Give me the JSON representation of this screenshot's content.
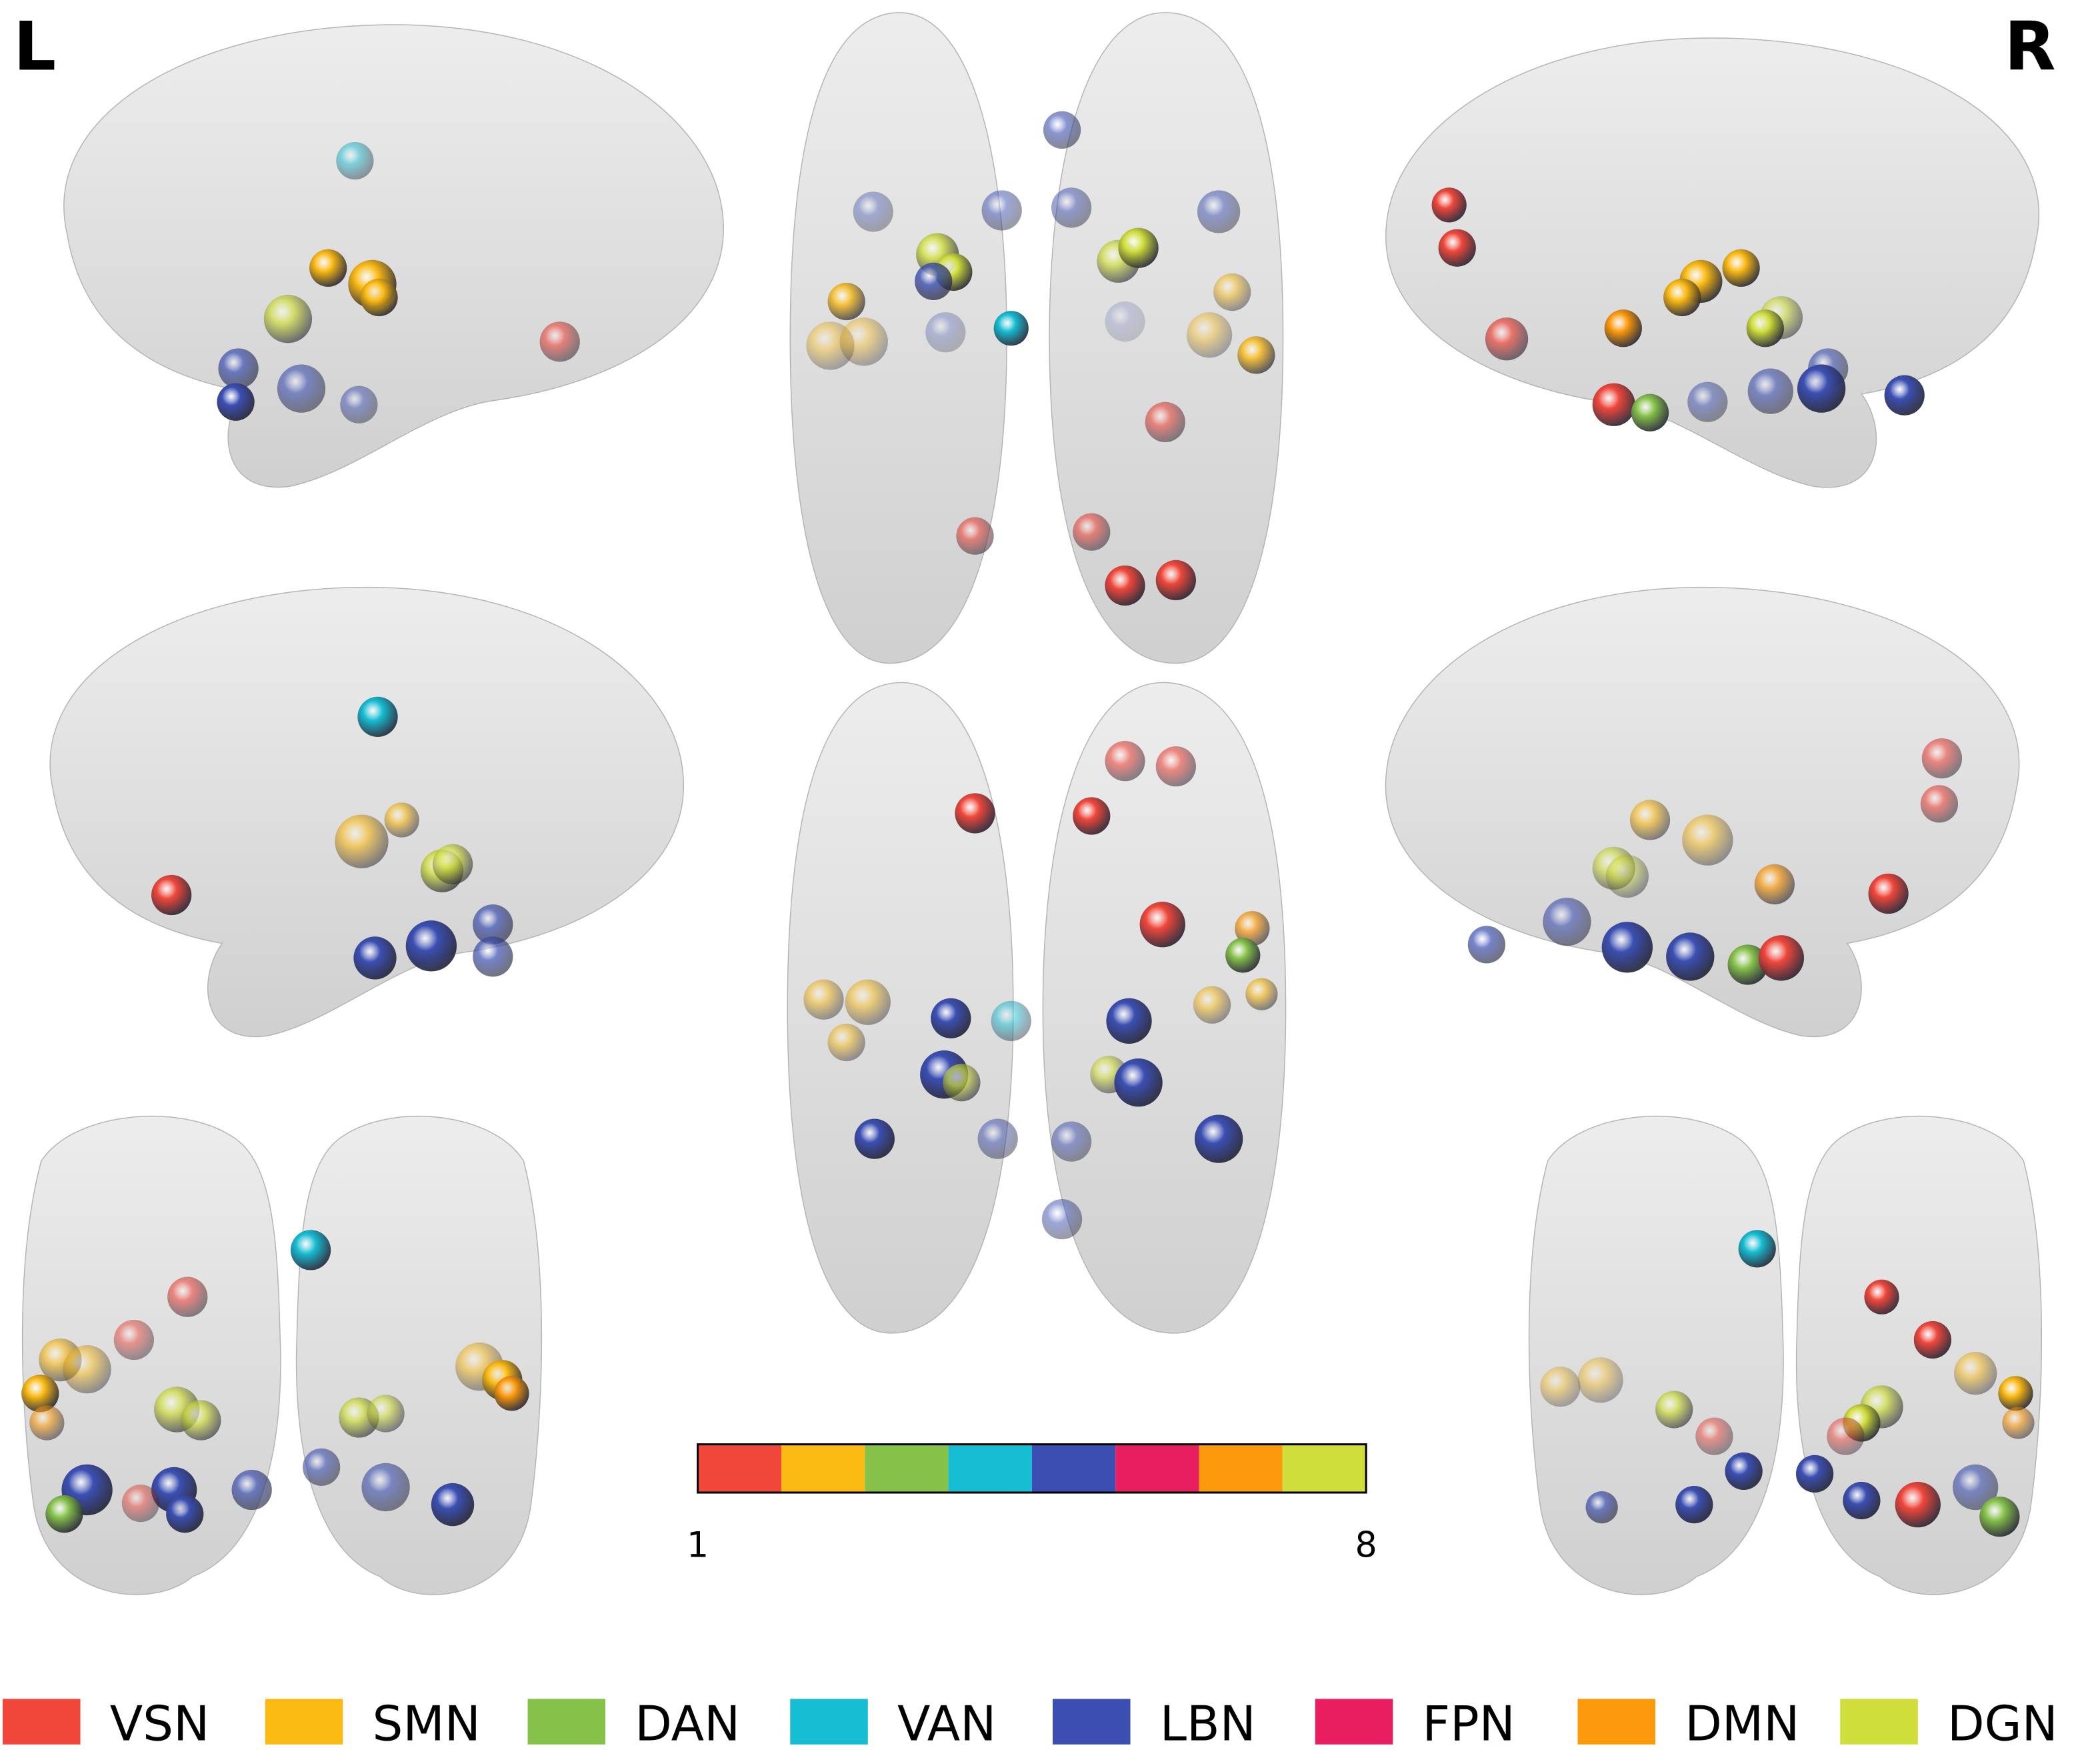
{
  "view_labels": {
    "left": "L",
    "right": "R"
  },
  "colorbar": {
    "min_label": "1",
    "max_label": "8"
  },
  "legend": {
    "items": [
      {
        "label": "VSN",
        "color": "#f0473a"
      },
      {
        "label": "SMN",
        "color": "#fbba12"
      },
      {
        "label": "DAN",
        "color": "#86c24a"
      },
      {
        "label": "VAN",
        "color": "#16bdd3"
      },
      {
        "label": "LBN",
        "color": "#3b4fb3"
      },
      {
        "label": "FPN",
        "color": "#e81e61"
      },
      {
        "label": "DMN",
        "color": "#fd9a0c"
      },
      {
        "label": "DGN",
        "color": "#cfde3a"
      }
    ]
  }
}
